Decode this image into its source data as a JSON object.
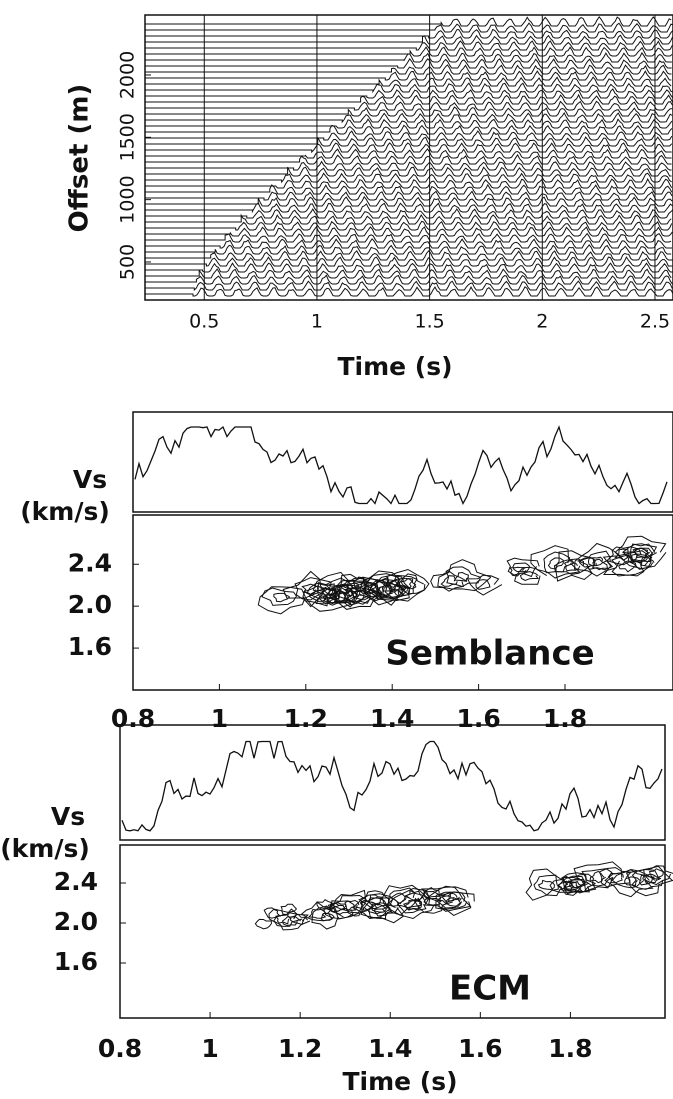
{
  "chart_data": [
    {
      "type": "seismogram",
      "xlabel": "Time (s)",
      "ylabel": "Offset (m)",
      "xlim": [
        0.237,
        2.58
      ],
      "xticks": [
        0.5,
        1,
        1.5,
        2,
        2.5
      ],
      "ylim": [
        195,
        2481
      ],
      "yticks": [
        500,
        1000,
        1500,
        2000
      ],
      "grid": true
    },
    {
      "type": "contour",
      "ylabel": [
        "Vs",
        "(km/s)"
      ],
      "annotation": "Semblance",
      "xlim": [
        0.8,
        2.05
      ],
      "xticks": [
        0.8,
        1,
        1.2,
        1.4,
        1.6,
        1.8
      ],
      "ylim": [
        1.2,
        2.87
      ],
      "yticks": [
        1.6,
        {
          "value": 2,
          "label": "2.0"
        },
        2.4
      ]
    },
    {
      "type": "contour",
      "ylabel": [
        "Vs",
        "(km/s)"
      ],
      "annotation": "ECM",
      "xlabel": "Time (s)",
      "xlim": [
        0.8,
        2.01
      ],
      "xticks": [
        0.8,
        1,
        1.2,
        1.4,
        1.6,
        1.8
      ],
      "ylim": [
        1.05,
        2.78
      ],
      "yticks": [
        1.6,
        {
          "value": 2,
          "label": "2.0"
        },
        2.4
      ]
    }
  ]
}
